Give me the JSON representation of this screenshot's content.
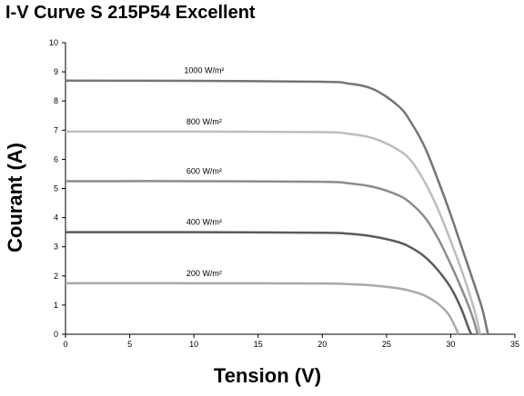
{
  "chart_data": {
    "type": "line",
    "title": "I-V Curve S 215P54 Excellent",
    "xlabel": "Tension (V)",
    "ylabel": "Courant (A)",
    "xlim": [
      0,
      35
    ],
    "ylim": [
      0,
      10
    ],
    "x_ticks": [
      "0",
      "5",
      "10",
      "15",
      "20",
      "25",
      "30",
      "35"
    ],
    "y_ticks": [
      "0",
      "1",
      "2",
      "3",
      "4",
      "5",
      "6",
      "7",
      "8",
      "9",
      "10"
    ],
    "grid": false,
    "series": [
      {
        "name": "1000 W/m²",
        "color": "#757575",
        "points": [
          [
            0,
            8.7
          ],
          [
            10,
            8.69
          ],
          [
            20,
            8.66
          ],
          [
            22,
            8.6
          ],
          [
            24,
            8.4
          ],
          [
            26,
            7.8
          ],
          [
            27,
            7.2
          ],
          [
            28,
            6.4
          ],
          [
            29,
            5.3
          ],
          [
            30,
            4.1
          ],
          [
            31,
            2.8
          ],
          [
            32,
            1.5
          ],
          [
            32.5,
            0.8
          ],
          [
            32.9,
            0
          ]
        ]
      },
      {
        "name": "800 W/m²",
        "color": "#bdbdbd",
        "points": [
          [
            0,
            6.95
          ],
          [
            10,
            6.95
          ],
          [
            20,
            6.93
          ],
          [
            22,
            6.88
          ],
          [
            24,
            6.72
          ],
          [
            26,
            6.3
          ],
          [
            27,
            5.9
          ],
          [
            28,
            5.2
          ],
          [
            29,
            4.3
          ],
          [
            30,
            3.2
          ],
          [
            31,
            2.0
          ],
          [
            31.8,
            0.9
          ],
          [
            32.3,
            0
          ]
        ]
      },
      {
        "name": "600 W/m²",
        "color": "#8c8c8c",
        "points": [
          [
            0,
            5.25
          ],
          [
            10,
            5.25
          ],
          [
            20,
            5.23
          ],
          [
            22,
            5.18
          ],
          [
            24,
            5.05
          ],
          [
            26,
            4.75
          ],
          [
            27,
            4.45
          ],
          [
            28,
            4.0
          ],
          [
            29,
            3.3
          ],
          [
            30,
            2.4
          ],
          [
            31,
            1.4
          ],
          [
            31.7,
            0.6
          ],
          [
            32.1,
            0
          ]
        ]
      },
      {
        "name": "400 W/m²",
        "color": "#5a5a5a",
        "points": [
          [
            0,
            3.5
          ],
          [
            10,
            3.5
          ],
          [
            20,
            3.48
          ],
          [
            22,
            3.45
          ],
          [
            24,
            3.35
          ],
          [
            26,
            3.15
          ],
          [
            27,
            2.95
          ],
          [
            28,
            2.65
          ],
          [
            29,
            2.2
          ],
          [
            30,
            1.6
          ],
          [
            30.8,
            0.9
          ],
          [
            31.4,
            0.2
          ],
          [
            31.6,
            0
          ]
        ]
      },
      {
        "name": "200 W/m²",
        "color": "#a9a9a9",
        "points": [
          [
            0,
            1.75
          ],
          [
            10,
            1.75
          ],
          [
            20,
            1.74
          ],
          [
            22,
            1.72
          ],
          [
            24,
            1.67
          ],
          [
            26,
            1.57
          ],
          [
            27,
            1.47
          ],
          [
            28,
            1.32
          ],
          [
            29,
            1.05
          ],
          [
            29.8,
            0.7
          ],
          [
            30.3,
            0.3
          ],
          [
            30.6,
            0
          ]
        ]
      }
    ]
  }
}
